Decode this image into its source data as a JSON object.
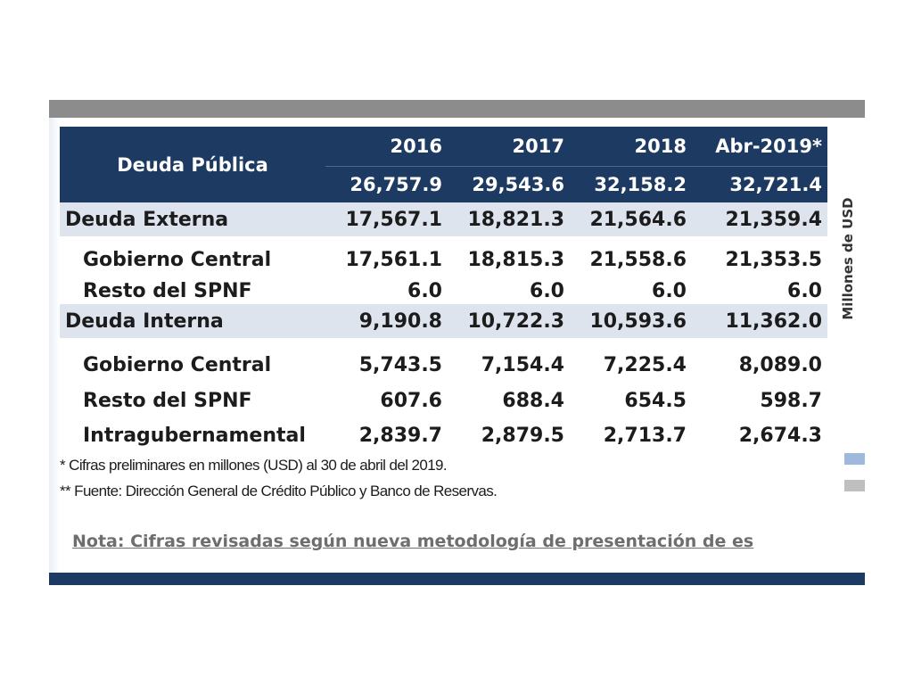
{
  "table": {
    "title": "Deuda Pública",
    "years": [
      "2016",
      "2017",
      "2018",
      "Abr-2019*"
    ],
    "totals": [
      "26,757.9",
      "29,543.6",
      "32,158.2",
      "32,721.4"
    ],
    "rows": [
      {
        "label": "Deuda Externa",
        "values": [
          "17,567.1",
          "18,821.3",
          "21,564.6",
          "21,359.4"
        ]
      },
      {
        "label": "Gobierno Central",
        "values": [
          "17,561.1",
          "18,815.3",
          "21,558.6",
          "21,353.5"
        ]
      },
      {
        "label": "Resto del SPNF",
        "values": [
          "6.0",
          "6.0",
          "6.0",
          "6.0"
        ]
      },
      {
        "label": "Deuda Interna",
        "values": [
          "9,190.8",
          "10,722.3",
          "10,593.6",
          "11,362.0"
        ]
      },
      {
        "label": "Gobierno Central",
        "values": [
          "5,743.5",
          "7,154.4",
          "7,225.4",
          "8,089.0"
        ]
      },
      {
        "label": "Resto del SPNF",
        "values": [
          "607.6",
          "688.4",
          "654.5",
          "598.7"
        ]
      },
      {
        "label": "Intragubernamental",
        "values": [
          "2,839.7",
          "2,879.5",
          "2,713.7",
          "2,674.3"
        ]
      }
    ]
  },
  "side_label": "Millones de USD",
  "footnotes": [
    "* Cifras preliminares en millones (USD) al 30 de abril del 2019.",
    "** Fuente: Dirección General de Crédito Público y Banco de Reservas."
  ],
  "nota": "Nota: Cifras revisadas según nueva metodología de presentación de es",
  "colors": {
    "header_bg": "#1d3a63",
    "band_bg": "#dde4ee",
    "top_bar": "#8c8c8c",
    "nota_text": "#6e6e6e",
    "legend_blue": "#9fb9dc",
    "legend_gray": "#bfbfbf"
  }
}
